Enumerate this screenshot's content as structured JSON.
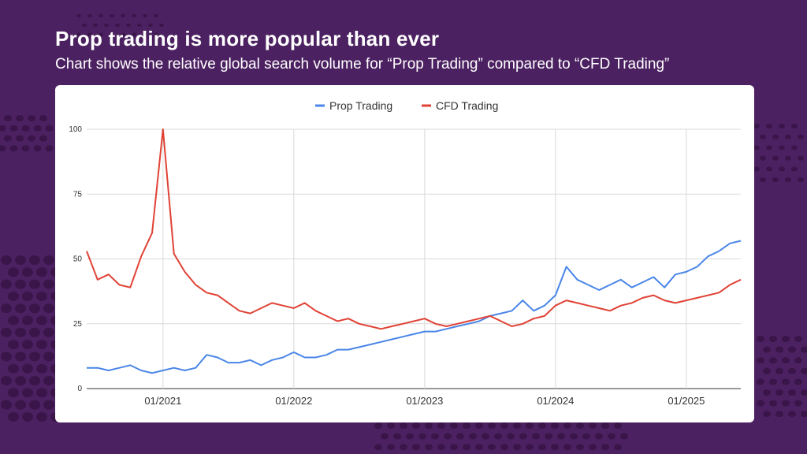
{
  "title": "Prop trading is more popular than ever",
  "subtitle": "Chart shows the relative global search volume for “Prop Trading” compared to “CFD Trading”",
  "colors": {
    "background": "#4c2161",
    "dots": "#3a1549",
    "prop": "#4a86e8",
    "cfd": "#e04235",
    "grid": "#d9d9d9",
    "axis": "#333333"
  },
  "chart_data": {
    "type": "line",
    "title": "",
    "xlabel": "",
    "ylabel": "",
    "ylim": [
      0,
      100
    ],
    "yticks": [
      0,
      25,
      50,
      75,
      100
    ],
    "legend_position": "top-center",
    "x_range": [
      "2020-06",
      "2025-06"
    ],
    "xticks": [
      {
        "label": "01/2021",
        "month": 7
      },
      {
        "label": "01/2022",
        "month": 19
      },
      {
        "label": "01/2023",
        "month": 31
      },
      {
        "label": "01/2024",
        "month": 43
      },
      {
        "label": "01/2025",
        "month": 55
      }
    ],
    "x_unit": "months since 2020-06",
    "series": [
      {
        "name": "Prop Trading",
        "color": "#4a86e8",
        "x": [
          0,
          1,
          2,
          3,
          4,
          5,
          6,
          7,
          8,
          9,
          10,
          11,
          12,
          13,
          14,
          15,
          16,
          17,
          18,
          19,
          20,
          21,
          22,
          23,
          24,
          25,
          26,
          27,
          28,
          29,
          30,
          31,
          32,
          33,
          34,
          35,
          36,
          37,
          38,
          39,
          40,
          41,
          42,
          43,
          44,
          45,
          46,
          47,
          48,
          49,
          50,
          51,
          52,
          53,
          54,
          55,
          56,
          57,
          58,
          59,
          60
        ],
        "y": [
          8,
          8,
          7,
          8,
          9,
          7,
          6,
          7,
          8,
          7,
          8,
          13,
          12,
          10,
          10,
          11,
          9,
          11,
          12,
          14,
          12,
          12,
          13,
          15,
          15,
          16,
          17,
          18,
          19,
          20,
          21,
          22,
          22,
          23,
          24,
          25,
          26,
          28,
          29,
          30,
          34,
          30,
          32,
          36,
          47,
          42,
          40,
          38,
          40,
          42,
          39,
          41,
          43,
          39,
          44,
          45,
          47,
          51,
          53,
          56,
          57
        ]
      },
      {
        "name": "CFD Trading",
        "color": "#e04235",
        "x": [
          0,
          1,
          2,
          3,
          4,
          5,
          6,
          7,
          8,
          9,
          10,
          11,
          12,
          13,
          14,
          15,
          16,
          17,
          18,
          19,
          20,
          21,
          22,
          23,
          24,
          25,
          26,
          27,
          28,
          29,
          30,
          31,
          32,
          33,
          34,
          35,
          36,
          37,
          38,
          39,
          40,
          41,
          42,
          43,
          44,
          45,
          46,
          47,
          48,
          49,
          50,
          51,
          52,
          53,
          54,
          55,
          56,
          57,
          58,
          59,
          60
        ],
        "y": [
          53,
          42,
          44,
          40,
          39,
          51,
          60,
          100,
          52,
          45,
          40,
          37,
          36,
          33,
          30,
          29,
          31,
          33,
          32,
          31,
          33,
          30,
          28,
          26,
          27,
          25,
          24,
          23,
          24,
          25,
          26,
          27,
          25,
          24,
          25,
          26,
          27,
          28,
          26,
          24,
          25,
          27,
          28,
          32,
          34,
          33,
          32,
          31,
          30,
          32,
          33,
          35,
          36,
          34,
          33,
          34,
          35,
          36,
          37,
          40,
          42
        ]
      }
    ]
  }
}
